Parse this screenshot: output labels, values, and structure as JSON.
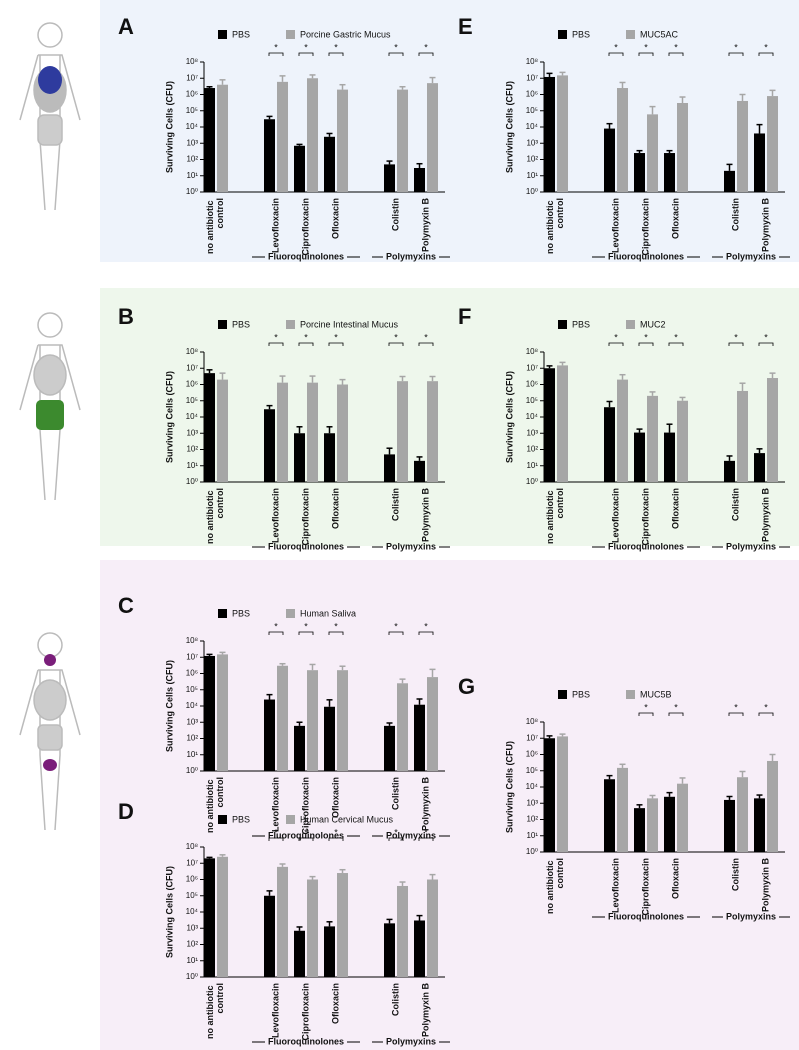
{
  "chart_data": [
    {
      "type": "bar",
      "label": "A",
      "log_scale": true,
      "y_label": "Surviving Cells (CFU)",
      "categories": [
        "no antibiotic control",
        "Levofloxacin",
        "Ciprofloxacin",
        "Ofloxacin",
        "Colistin",
        "Polymyxin B"
      ],
      "groups": [
        "Fluoroquinolones",
        "Polymyxins"
      ],
      "significance": [
        null,
        "*",
        "*",
        "*",
        "*",
        "*"
      ],
      "series": [
        {
          "name": "PBS",
          "color": "#000000",
          "values": [
            2500000,
            30000,
            700,
            2500,
            50,
            30
          ],
          "errors": [
            500000,
            15000,
            150,
            1500,
            30,
            25
          ]
        },
        {
          "name": "Porcine Gastric Mucus",
          "color": "#a6a6a6",
          "values": [
            4000000,
            6000000,
            10000000,
            2000000,
            2000000,
            5000000
          ],
          "errors": [
            4000000,
            8000000,
            6000000,
            2000000,
            1000000,
            6000000
          ]
        }
      ],
      "ylim": [
        1,
        100000000
      ],
      "yticks": [
        {
          "value": 1,
          "label": "10⁰"
        },
        {
          "value": 10,
          "label": "10¹"
        },
        {
          "value": 100,
          "label": "10²"
        },
        {
          "value": 1000,
          "label": "10³"
        },
        {
          "value": 10000,
          "label": "10⁴"
        },
        {
          "value": 100000,
          "label": "10⁵"
        },
        {
          "value": 1000000,
          "label": "10⁶"
        },
        {
          "value": 10000000,
          "label": "10⁷"
        },
        {
          "value": 100000000,
          "label": "10⁸"
        }
      ]
    },
    {
      "type": "bar",
      "label": "E",
      "log_scale": true,
      "y_label": "Surviving Cells (CFU)",
      "categories": [
        "no antibiotic control",
        "Levofloxacin",
        "Ciprofloxacin",
        "Ofloxacin",
        "Colistin",
        "Polymyxin B"
      ],
      "groups": [
        "Fluoroquinolones",
        "Polymyxins"
      ],
      "significance": [
        null,
        "*",
        "*",
        "*",
        "*",
        "*"
      ],
      "series": [
        {
          "name": "PBS",
          "color": "#000000",
          "values": [
            12000000,
            8000,
            250,
            250,
            20,
            4000
          ],
          "errors": [
            8000000,
            8000,
            100,
            100,
            30,
            10000
          ]
        },
        {
          "name": "MUC5AC",
          "color": "#a6a6a6",
          "values": [
            15000000,
            2500000,
            60000,
            300000,
            400000,
            800000
          ],
          "errors": [
            8000000,
            3000000,
            120000,
            400000,
            600000,
            1000000
          ]
        }
      ],
      "ylim": [
        1,
        100000000
      ],
      "yticks": [
        {
          "value": 1,
          "label": "10⁰"
        },
        {
          "value": 10,
          "label": "10¹"
        },
        {
          "value": 100,
          "label": "10²"
        },
        {
          "value": 1000,
          "label": "10³"
        },
        {
          "value": 10000,
          "label": "10⁴"
        },
        {
          "value": 100000,
          "label": "10⁵"
        },
        {
          "value": 1000000,
          "label": "10⁶"
        },
        {
          "value": 10000000,
          "label": "10⁷"
        },
        {
          "value": 100000000,
          "label": "10⁸"
        }
      ]
    },
    {
      "type": "bar",
      "label": "B",
      "log_scale": true,
      "y_label": "Surviving Cells (CFU)",
      "categories": [
        "no antibiotic control",
        "Levofloxacin",
        "Ciprofloxacin",
        "Ofloxacin",
        "Colistin",
        "Polymyxin B"
      ],
      "groups": [
        "Fluoroquinolones",
        "Polymyxins"
      ],
      "significance": [
        null,
        "*",
        "*",
        "*",
        "*",
        "*"
      ],
      "series": [
        {
          "name": "PBS",
          "color": "#000000",
          "values": [
            5000000,
            30000,
            1000,
            1000,
            50,
            20
          ],
          "errors": [
            3000000,
            20000,
            1500,
            1500,
            70,
            15
          ]
        },
        {
          "name": "Porcine Intestinal Mucus",
          "color": "#a6a6a6",
          "values": [
            2000000,
            1300000,
            1300000,
            1000000,
            1600000,
            1600000
          ],
          "errors": [
            3000000,
            2000000,
            2000000,
            1000000,
            1500000,
            1500000
          ]
        }
      ],
      "ylim": [
        1,
        100000000
      ],
      "yticks": [
        {
          "value": 1,
          "label": "10⁰"
        },
        {
          "value": 10,
          "label": "10¹"
        },
        {
          "value": 100,
          "label": "10²"
        },
        {
          "value": 1000,
          "label": "10³"
        },
        {
          "value": 10000,
          "label": "10⁴"
        },
        {
          "value": 100000,
          "label": "10⁵"
        },
        {
          "value": 1000000,
          "label": "10⁶"
        },
        {
          "value": 10000000,
          "label": "10⁷"
        },
        {
          "value": 100000000,
          "label": "10⁸"
        }
      ]
    },
    {
      "type": "bar",
      "label": "F",
      "log_scale": true,
      "y_label": "Surviving Cells (CFU)",
      "categories": [
        "no antibiotic control",
        "Levofloxacin",
        "Ciprofloxacin",
        "Ofloxacin",
        "Colistin",
        "Polymyxin B"
      ],
      "groups": [
        "Fluoroquinolones",
        "Polymyxins"
      ],
      "significance": [
        null,
        "*",
        "*",
        "*",
        "*",
        "*"
      ],
      "series": [
        {
          "name": "PBS",
          "color": "#000000",
          "values": [
            10000000,
            40000,
            1100,
            1100,
            20,
            60
          ],
          "errors": [
            4000000,
            50000,
            700,
            2500,
            20,
            50
          ]
        },
        {
          "name": "MUC2",
          "color": "#a6a6a6",
          "values": [
            15000000,
            2000000,
            200000,
            100000,
            400000,
            2500000
          ],
          "errors": [
            8000000,
            2000000,
            150000,
            60000,
            800000,
            2500000
          ]
        }
      ],
      "ylim": [
        1,
        100000000
      ],
      "yticks": [
        {
          "value": 1,
          "label": "10⁰"
        },
        {
          "value": 10,
          "label": "10¹"
        },
        {
          "value": 100,
          "label": "10²"
        },
        {
          "value": 1000,
          "label": "10³"
        },
        {
          "value": 10000,
          "label": "10⁴"
        },
        {
          "value": 100000,
          "label": "10⁵"
        },
        {
          "value": 1000000,
          "label": "10⁶"
        },
        {
          "value": 10000000,
          "label": "10⁷"
        },
        {
          "value": 100000000,
          "label": "10⁸"
        }
      ]
    },
    {
      "type": "bar",
      "label": "C",
      "log_scale": true,
      "y_label": "Surviving Cells (CFU)",
      "categories": [
        "no antibiotic control",
        "Levofloxacin",
        "Ciprofloxacin",
        "Ofloxacin",
        "Colistin",
        "Polymyxin B"
      ],
      "groups": [
        "Fluoroquinolones",
        "Polymyxins"
      ],
      "significance": [
        null,
        "*",
        "*",
        "*",
        "*",
        "*"
      ],
      "series": [
        {
          "name": "PBS",
          "color": "#000000",
          "values": [
            12000000,
            25000,
            600,
            9000,
            600,
            12000
          ],
          "errors": [
            3000000,
            25000,
            400,
            15000,
            300,
            15000
          ]
        },
        {
          "name": "Human Saliva",
          "color": "#a6a6a6",
          "values": [
            15000000,
            3000000,
            1600000,
            1600000,
            250000,
            600000
          ],
          "errors": [
            5000000,
            1000000,
            2000000,
            1200000,
            200000,
            1200000
          ]
        }
      ],
      "ylim": [
        1,
        100000000
      ],
      "yticks": [
        {
          "value": 1,
          "label": "10⁰"
        },
        {
          "value": 10,
          "label": "10¹"
        },
        {
          "value": 100,
          "label": "10²"
        },
        {
          "value": 1000,
          "label": "10³"
        },
        {
          "value": 10000,
          "label": "10⁴"
        },
        {
          "value": 100000,
          "label": "10⁵"
        },
        {
          "value": 1000000,
          "label": "10⁶"
        },
        {
          "value": 10000000,
          "label": "10⁷"
        },
        {
          "value": 100000000,
          "label": "10⁸"
        }
      ]
    },
    {
      "type": "bar",
      "label": "D",
      "log_scale": true,
      "y_label": "Surviving Cells (CFU)",
      "categories": [
        "no antibiotic control",
        "Levofloxacin",
        "Ciprofloxacin",
        "Ofloxacin",
        "Colistin",
        "Polymyxin B"
      ],
      "groups": [
        "Fluoroquinolones",
        "Polymyxins"
      ],
      "significance": [
        null,
        "*",
        "*",
        "*",
        "*",
        "*"
      ],
      "series": [
        {
          "name": "PBS",
          "color": "#000000",
          "values": [
            20000000,
            100000,
            700,
            1300,
            2000,
            3000
          ],
          "errors": [
            3000000,
            100000,
            500,
            1200,
            1500,
            3000
          ]
        },
        {
          "name": "Human Cervical Mucus",
          "color": "#a6a6a6",
          "values": [
            25000000,
            6000000,
            1000000,
            2500000,
            400000,
            1000000
          ],
          "errors": [
            8000000,
            3000000,
            500000,
            1500000,
            300000,
            1000000
          ]
        }
      ],
      "ylim": [
        1,
        100000000
      ],
      "yticks": [
        {
          "value": 1,
          "label": "10⁰"
        },
        {
          "value": 10,
          "label": "10¹"
        },
        {
          "value": 100,
          "label": "10²"
        },
        {
          "value": 1000,
          "label": "10³"
        },
        {
          "value": 10000,
          "label": "10⁴"
        },
        {
          "value": 100000,
          "label": "10⁵"
        },
        {
          "value": 1000000,
          "label": "10⁶"
        },
        {
          "value": 10000000,
          "label": "10⁷"
        },
        {
          "value": 100000000,
          "label": "10⁸"
        }
      ]
    },
    {
      "type": "bar",
      "label": "G",
      "log_scale": true,
      "y_label": "Surviving Cells (CFU)",
      "categories": [
        "no antibiotic control",
        "Levofloxacin",
        "Ciprofloxacin",
        "Ofloxacin",
        "Colistin",
        "Polymyxin B"
      ],
      "groups": [
        "Fluoroquinolones",
        "Polymyxins"
      ],
      "significance": [
        null,
        null,
        "*",
        "*",
        "*",
        "*"
      ],
      "series": [
        {
          "name": "PBS",
          "color": "#000000",
          "values": [
            10000000,
            30000,
            500,
            2500,
            1600,
            2000
          ],
          "errors": [
            4000000,
            20000,
            300,
            2000,
            1000,
            1200
          ]
        },
        {
          "name": "MUC5B",
          "color": "#a6a6a6",
          "values": [
            13000000,
            150000,
            2000,
            16000,
            40000,
            400000
          ],
          "errors": [
            5000000,
            100000,
            1000,
            20000,
            50000,
            600000
          ]
        }
      ],
      "ylim": [
        1,
        100000000
      ],
      "yticks": [
        {
          "value": 1,
          "label": "10⁰"
        },
        {
          "value": 10,
          "label": "10¹"
        },
        {
          "value": 100,
          "label": "10²"
        },
        {
          "value": 1000,
          "label": "10³"
        },
        {
          "value": 10000,
          "label": "10⁴"
        },
        {
          "value": 100000,
          "label": "10⁵"
        },
        {
          "value": 1000000,
          "label": "10⁶"
        },
        {
          "value": 10000000,
          "label": "10⁷"
        },
        {
          "value": 100000000,
          "label": "10⁸"
        }
      ]
    }
  ]
}
